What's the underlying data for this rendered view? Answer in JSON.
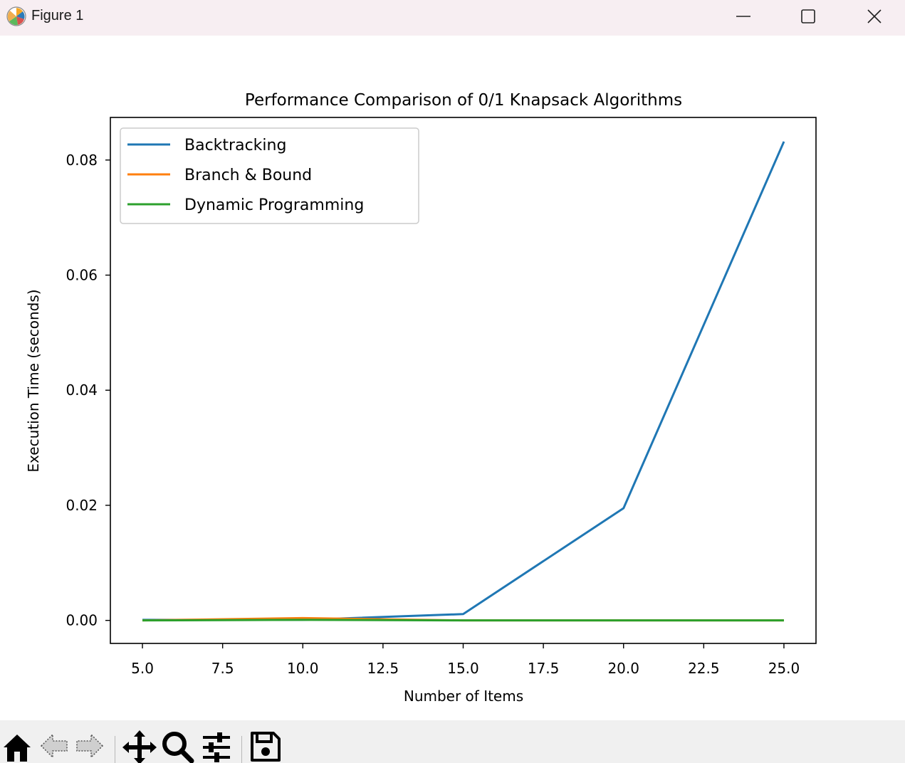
{
  "window": {
    "title": "Figure 1",
    "controls": [
      "minimize",
      "maximize",
      "close"
    ]
  },
  "toolbar": {
    "buttons": [
      {
        "name": "home",
        "icon": "home-icon",
        "enabled": true
      },
      {
        "name": "back",
        "icon": "arrow-left-icon",
        "enabled": false
      },
      {
        "name": "forward",
        "icon": "arrow-right-icon",
        "enabled": false
      },
      {
        "name": "pan",
        "icon": "move-icon",
        "enabled": true
      },
      {
        "name": "zoom",
        "icon": "magnifier-icon",
        "enabled": true
      },
      {
        "name": "configure-subplots",
        "icon": "sliders-icon",
        "enabled": true
      },
      {
        "name": "save",
        "icon": "floppy-disk-icon",
        "enabled": true
      }
    ]
  },
  "chart_data": {
    "type": "line",
    "title": "Performance Comparison of 0/1 Knapsack Algorithms",
    "xlabel": "Number of Items",
    "ylabel": "Execution Time (seconds)",
    "xlim": [
      4.0,
      26.0
    ],
    "ylim": [
      -0.004,
      0.0874
    ],
    "xticks": [
      5.0,
      7.5,
      10.0,
      12.5,
      15.0,
      17.5,
      20.0,
      22.5,
      25.0
    ],
    "xtick_labels": [
      "5.0",
      "7.5",
      "10.0",
      "12.5",
      "15.0",
      "17.5",
      "20.0",
      "22.5",
      "25.0"
    ],
    "yticks": [
      0.0,
      0.02,
      0.04,
      0.06,
      0.08
    ],
    "ytick_labels": [
      "0.00",
      "0.02",
      "0.04",
      "0.06",
      "0.08"
    ],
    "grid": false,
    "legend_position": "upper-left",
    "x": [
      5,
      10,
      15,
      20,
      25
    ],
    "series": [
      {
        "name": "Backtracking",
        "color": "#1f77b4",
        "values": [
          0.0001,
          0.0001,
          0.0011,
          0.0195,
          0.0832
        ]
      },
      {
        "name": "Branch & Bound",
        "color": "#ff7f0e",
        "values": [
          0.0,
          0.0004,
          0.0,
          0.0,
          0.0
        ]
      },
      {
        "name": "Dynamic Programming",
        "color": "#2ca02c",
        "values": [
          0.0,
          0.0001,
          0.0,
          0.0,
          0.0
        ]
      }
    ]
  }
}
